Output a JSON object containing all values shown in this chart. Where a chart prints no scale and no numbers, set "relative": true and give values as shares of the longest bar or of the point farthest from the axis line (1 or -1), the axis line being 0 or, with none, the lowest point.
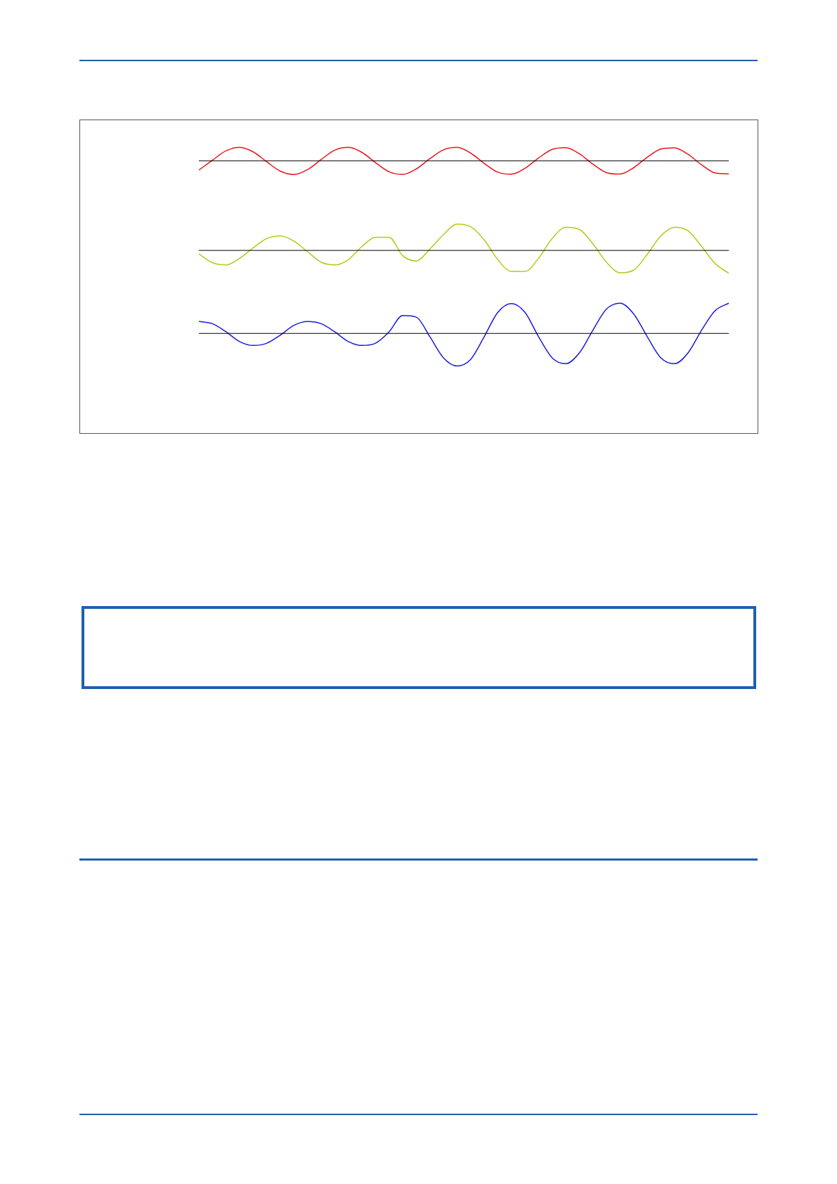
{
  "chart_data": [
    {
      "type": "line",
      "relative": true,
      "legend": false,
      "categories": [
        null,
        null,
        null,
        null,
        null,
        null,
        null,
        null,
        null,
        null,
        null,
        null,
        null,
        null,
        null,
        null,
        null,
        null,
        null,
        null,
        null,
        null,
        null,
        null,
        null,
        null,
        null,
        null,
        null,
        null,
        null,
        null,
        null,
        null,
        null,
        null,
        null,
        null,
        null,
        null
      ],
      "series": [
        {
          "color": "#e8141c",
          "values": [
            -0.68,
            0.05,
            0.74,
            1,
            0.66,
            -0.07,
            -0.76,
            -1,
            -0.64,
            0.1,
            0.78,
            0.99,
            0.62,
            -0.13,
            -0.8,
            -0.99,
            -0.59,
            0.16,
            0.81,
            0.99,
            0.57,
            -0.18,
            -0.83,
            -0.98,
            -0.55,
            0.21,
            0.84,
            0.97,
            0.52,
            -0.24,
            -0.86,
            -0.97,
            -0.5,
            0.27,
            0.87,
            0.96,
            0.48,
            -0.29,
            -0.89,
            -0.95
          ]
        }
      ]
    },
    {
      "type": "line",
      "relative": true,
      "legend": false,
      "categories": [
        null,
        null,
        null,
        null,
        null,
        null,
        null,
        null,
        null,
        null,
        null,
        null,
        null,
        null,
        null,
        null,
        null,
        null,
        null,
        null,
        null,
        null,
        null,
        null,
        null,
        null,
        null,
        null,
        null,
        null,
        null,
        null,
        null,
        null,
        null,
        null,
        null,
        null,
        null,
        null
      ],
      "series": [
        {
          "color": "#b5c918",
          "values": [
            -0.13,
            -0.47,
            -0.55,
            -0.3,
            0.1,
            0.45,
            0.55,
            0.35,
            -0.05,
            -0.45,
            -0.55,
            -0.35,
            0.15,
            0.5,
            0.5,
            -0.2,
            -0.4,
            0.05,
            0.6,
            1,
            0.9,
            0.4,
            -0.35,
            -0.8,
            -0.8,
            -0.3,
            0.45,
            0.88,
            0.8,
            0.25,
            -0.45,
            -0.85,
            -0.75,
            -0.15,
            0.55,
            0.88,
            0.75,
            0.15,
            -0.5,
            -0.87
          ]
        }
      ]
    },
    {
      "type": "line",
      "relative": true,
      "legend": false,
      "categories": [
        null,
        null,
        null,
        null,
        null,
        null,
        null,
        null,
        null,
        null,
        null,
        null,
        null,
        null,
        null,
        null,
        null,
        null,
        null,
        null,
        null,
        null,
        null,
        null,
        null,
        null,
        null,
        null,
        null,
        null,
        null,
        null,
        null,
        null,
        null,
        null,
        null,
        null,
        null,
        null
      ],
      "series": [
        {
          "color": "#1a1adc",
          "values": [
            0.37,
            0.3,
            0.05,
            -0.25,
            -0.37,
            -0.3,
            -0.05,
            0.25,
            0.37,
            0.3,
            0.05,
            -0.25,
            -0.37,
            -0.3,
            0.05,
            0.55,
            0.5,
            -0.1,
            -0.75,
            -1,
            -0.8,
            -0.1,
            0.65,
            0.92,
            0.65,
            -0.1,
            -0.75,
            -0.93,
            -0.6,
            0.1,
            0.75,
            0.93,
            0.6,
            -0.1,
            -0.75,
            -0.93,
            -0.6,
            0.1,
            0.7,
            0.93
          ]
        }
      ]
    }
  ]
}
